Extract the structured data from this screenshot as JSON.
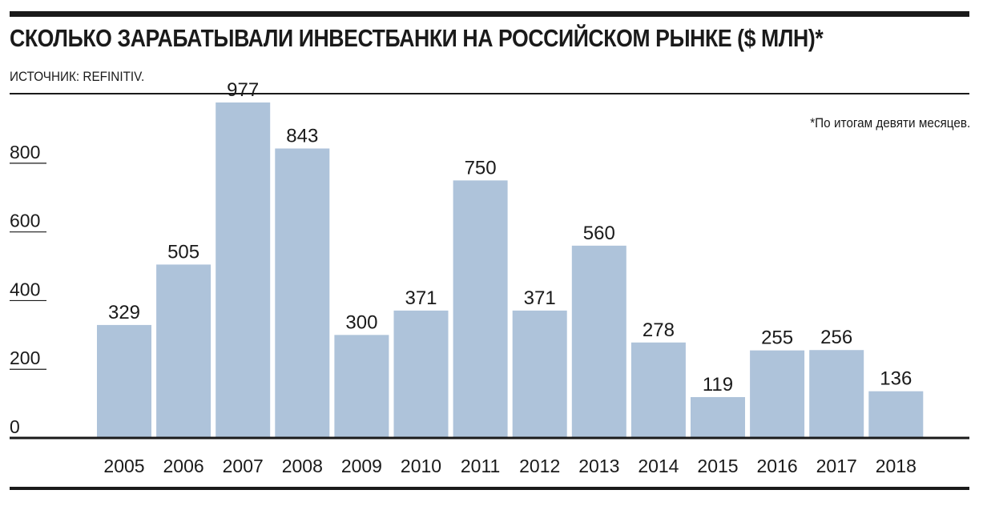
{
  "header": {
    "title": "СКОЛЬКО ЗАРАБАТЫВАЛИ ИНВЕСТБАНКИ НА РОССИЙСКОМ РЫНКЕ ($ МЛН)*",
    "source": "ИСТОЧНИК: REFINITIV.",
    "footnote": "*По итогам девяти месяцев."
  },
  "colors": {
    "bar": "#aec3da",
    "text": "#1a1a1a",
    "background": "#ffffff"
  },
  "chart_data": {
    "type": "bar",
    "title": "СКОЛЬКО ЗАРАБАТЫВАЛИ ИНВЕСТБАНКИ НА РОССИЙСКОМ РЫНКЕ ($ МЛН)*",
    "xlabel": "",
    "ylabel": "",
    "categories": [
      "2005",
      "2006",
      "2007",
      "2008",
      "2009",
      "2010",
      "2011",
      "2012",
      "2013",
      "2014",
      "2015",
      "2016",
      "2017",
      "2018"
    ],
    "values": [
      329,
      505,
      977,
      843,
      300,
      371,
      750,
      371,
      560,
      278,
      119,
      255,
      256,
      136
    ],
    "data_labels": [
      "329",
      "505",
      "977",
      "843",
      "300",
      "371",
      "750",
      "371",
      "560",
      "278",
      "119",
      "255",
      "256",
      "136"
    ],
    "y_ticks": [
      0,
      200,
      400,
      600,
      800
    ],
    "y_tick_labels": [
      "0",
      "200",
      "400",
      "600",
      "800"
    ],
    "ylim": [
      0,
      977
    ],
    "grid": false,
    "legend": "none",
    "bar_color": "#aec3da"
  }
}
